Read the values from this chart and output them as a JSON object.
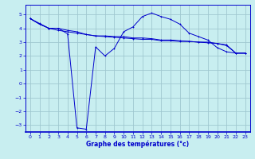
{
  "xlabel": "Graphe des températures (°c)",
  "bg_color": "#c8eef0",
  "line_color": "#0000cc",
  "grid_color": "#a0c8d0",
  "xlim": [
    -0.5,
    23.5
  ],
  "ylim": [
    -3.5,
    5.7
  ],
  "xticks": [
    0,
    1,
    2,
    3,
    4,
    5,
    6,
    7,
    8,
    9,
    10,
    11,
    12,
    13,
    14,
    15,
    16,
    17,
    18,
    19,
    20,
    21,
    22,
    23
  ],
  "yticks": [
    -3,
    -2,
    -1,
    0,
    1,
    2,
    3,
    4,
    5
  ],
  "line1_x": [
    0,
    1,
    2,
    3,
    4,
    5,
    6,
    7,
    8,
    9,
    10,
    11,
    12,
    13,
    14,
    15,
    16,
    17,
    18,
    19,
    20,
    21,
    22,
    23
  ],
  "line1_y": [
    4.7,
    4.35,
    4.0,
    3.85,
    3.75,
    3.65,
    3.55,
    3.45,
    3.4,
    3.35,
    3.3,
    3.25,
    3.2,
    3.2,
    3.1,
    3.1,
    3.05,
    3.05,
    3.0,
    2.95,
    2.9,
    2.75,
    2.2,
    2.2
  ],
  "line2_x": [
    0,
    1,
    2,
    3,
    4,
    5,
    6,
    7,
    8,
    9,
    10,
    11,
    12,
    13,
    14,
    15,
    16,
    17,
    18,
    19,
    20,
    21,
    22,
    23
  ],
  "line2_y": [
    4.7,
    4.3,
    4.0,
    4.0,
    3.85,
    3.75,
    3.55,
    3.45,
    3.45,
    3.4,
    3.4,
    3.3,
    3.3,
    3.25,
    3.15,
    3.15,
    3.1,
    3.05,
    3.0,
    3.0,
    2.9,
    2.8,
    2.2,
    2.2
  ],
  "line3_x": [
    0,
    1,
    2,
    3,
    4,
    5,
    6,
    7,
    8,
    9,
    10,
    11,
    12,
    13,
    14,
    15,
    16,
    17,
    18,
    19,
    20,
    21,
    22,
    23
  ],
  "line3_y": [
    4.7,
    4.3,
    4.0,
    4.0,
    3.6,
    -3.2,
    -3.3,
    2.65,
    2.0,
    2.55,
    3.75,
    4.1,
    4.85,
    5.1,
    4.85,
    4.65,
    4.3,
    3.65,
    3.4,
    3.15,
    2.6,
    2.3,
    2.2,
    2.2
  ]
}
